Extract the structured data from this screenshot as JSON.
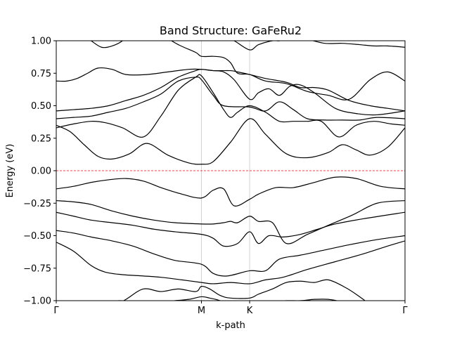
{
  "chart_data": {
    "type": "line",
    "title": "Band Structure: GaFeRu2",
    "xlabel": "k-path",
    "ylabel": "Energy (eV)",
    "xlim": [
      0,
      1
    ],
    "ylim": [
      -1.0,
      1.0
    ],
    "yticks": [
      -1.0,
      -0.75,
      -0.5,
      -0.25,
      0.0,
      0.25,
      0.5,
      0.75,
      1.0
    ],
    "ytick_labels": [
      "−1.00",
      "−0.75",
      "−0.50",
      "−0.25",
      "0.00",
      "0.25",
      "0.50",
      "0.75",
      "1.00"
    ],
    "kpoints": [
      {
        "label": "Γ",
        "x": 0.0
      },
      {
        "label": "M",
        "x": 0.4163
      },
      {
        "label": "K",
        "x": 0.5545
      },
      {
        "label": "Γ",
        "x": 1.0
      }
    ],
    "kpoint_vlines": true,
    "fermi_level": {
      "energy": 0.0,
      "color": "#ff0000",
      "style": "dashed"
    },
    "band_color": "#000000",
    "legend": "none",
    "grid": false,
    "series": [
      {
        "x": [
          0,
          0.05,
          0.1,
          0.14,
          0.19,
          0.25,
          0.3,
          0.36,
          0.4163,
          0.45,
          0.5,
          0.5545,
          0.6,
          0.65,
          0.72,
          0.8,
          0.88,
          0.95,
          1.0
        ],
        "y": [
          -0.55,
          -0.62,
          -0.73,
          -0.78,
          -0.8,
          -0.81,
          -0.82,
          -0.84,
          -0.86,
          -0.87,
          -0.86,
          -0.87,
          -0.84,
          -0.82,
          -0.76,
          -0.7,
          -0.64,
          -0.58,
          -0.54
        ]
      },
      {
        "x": [
          0,
          0.05,
          0.1,
          0.16,
          0.22,
          0.28,
          0.34,
          0.4163,
          0.45,
          0.49,
          0.5545,
          0.6,
          0.64,
          0.7,
          0.77,
          0.84,
          0.92,
          1.0
        ],
        "y": [
          -0.46,
          -0.48,
          -0.51,
          -0.54,
          -0.58,
          -0.64,
          -0.69,
          -0.72,
          -0.79,
          -0.81,
          -0.77,
          -0.77,
          -0.68,
          -0.65,
          -0.61,
          -0.57,
          -0.53,
          -0.5
        ]
      },
      {
        "x": [
          0,
          0.05,
          0.1,
          0.16,
          0.22,
          0.28,
          0.34,
          0.4163,
          0.45,
          0.48,
          0.52,
          0.5545,
          0.58,
          0.61,
          0.65,
          0.7,
          0.75,
          0.8,
          0.88,
          1.0
        ],
        "y": [
          -0.32,
          -0.35,
          -0.38,
          -0.4,
          -0.42,
          -0.45,
          -0.47,
          -0.49,
          -0.52,
          -0.58,
          -0.56,
          -0.47,
          -0.56,
          -0.5,
          -0.51,
          -0.49,
          -0.45,
          -0.41,
          -0.37,
          -0.32
        ]
      },
      {
        "x": [
          0,
          0.05,
          0.1,
          0.16,
          0.22,
          0.28,
          0.34,
          0.4163,
          0.45,
          0.48,
          0.5,
          0.52,
          0.5545,
          0.58,
          0.62,
          0.66,
          0.72,
          0.78,
          0.85,
          0.92,
          1.0
        ],
        "y": [
          -0.23,
          -0.24,
          -0.26,
          -0.31,
          -0.35,
          -0.38,
          -0.4,
          -0.41,
          -0.41,
          -0.4,
          -0.39,
          -0.4,
          -0.35,
          -0.39,
          -0.4,
          -0.56,
          -0.49,
          -0.42,
          -0.34,
          -0.25,
          -0.23
        ]
      },
      {
        "x": [
          0,
          0.05,
          0.1,
          0.15,
          0.2,
          0.25,
          0.3,
          0.36,
          0.4163,
          0.45,
          0.48,
          0.51,
          0.5545,
          0.58,
          0.63,
          0.68,
          0.74,
          0.8,
          0.86,
          0.93,
          1.0
        ],
        "y": [
          -0.14,
          -0.12,
          -0.09,
          -0.07,
          -0.06,
          -0.08,
          -0.13,
          -0.18,
          -0.21,
          -0.15,
          -0.14,
          -0.27,
          -0.22,
          -0.18,
          -0.13,
          -0.13,
          -0.09,
          -0.05,
          -0.06,
          -0.12,
          -0.14
        ]
      },
      {
        "x": [
          0,
          0.04,
          0.08,
          0.12,
          0.16,
          0.21,
          0.26,
          0.32,
          0.38,
          0.4163,
          0.45,
          0.5,
          0.5545,
          0.6,
          0.66,
          0.72,
          0.78,
          0.82,
          0.86,
          0.9,
          0.95,
          1.0
        ],
        "y": [
          0.35,
          0.3,
          0.2,
          0.11,
          0.09,
          0.13,
          0.21,
          0.12,
          0.06,
          0.05,
          0.07,
          0.22,
          0.4,
          0.28,
          0.13,
          0.1,
          0.14,
          0.2,
          0.16,
          0.12,
          0.18,
          0.33
        ]
      },
      {
        "x": [
          0,
          0.05,
          0.1,
          0.14,
          0.19,
          0.25,
          0.3,
          0.35,
          0.4,
          0.4163,
          0.45,
          0.48,
          0.5,
          0.52,
          0.5545,
          0.6,
          0.64,
          0.68,
          0.72,
          0.76,
          0.81,
          0.86,
          0.91,
          0.96,
          1.0
        ],
        "y": [
          0.33,
          0.36,
          0.38,
          0.37,
          0.33,
          0.26,
          0.42,
          0.62,
          0.72,
          0.73,
          0.6,
          0.47,
          0.41,
          0.45,
          0.5,
          0.45,
          0.38,
          0.38,
          0.38,
          0.38,
          0.26,
          0.35,
          0.38,
          0.36,
          0.35
        ]
      },
      {
        "x": [
          0,
          0.05,
          0.1,
          0.15,
          0.2,
          0.25,
          0.3,
          0.35,
          0.4,
          0.4163,
          0.45,
          0.48,
          0.5545,
          0.6,
          0.64,
          0.68,
          0.72,
          0.77,
          0.82,
          0.87,
          0.92,
          1.0
        ],
        "y": [
          0.4,
          0.41,
          0.42,
          0.45,
          0.48,
          0.53,
          0.59,
          0.69,
          0.72,
          0.7,
          0.58,
          0.5,
          0.49,
          0.46,
          0.53,
          0.47,
          0.4,
          0.39,
          0.39,
          0.39,
          0.41,
          0.4
        ]
      },
      {
        "x": [
          0,
          0.05,
          0.1,
          0.15,
          0.2,
          0.25,
          0.3,
          0.35,
          0.4,
          0.4163,
          0.45,
          0.48,
          0.51,
          0.5545,
          0.58,
          0.61,
          0.64,
          0.67,
          0.7,
          0.74,
          0.8,
          0.86,
          0.92,
          1.0
        ],
        "y": [
          0.46,
          0.47,
          0.48,
          0.5,
          0.54,
          0.58,
          0.64,
          0.72,
          0.77,
          0.78,
          0.77,
          0.76,
          0.7,
          0.55,
          0.6,
          0.63,
          0.58,
          0.65,
          0.66,
          0.6,
          0.48,
          0.44,
          0.43,
          0.46
        ]
      },
      {
        "x": [
          0,
          0.03,
          0.06,
          0.09,
          0.12,
          0.16,
          0.2,
          0.26,
          0.32,
          0.38,
          0.4163,
          0.45,
          0.5,
          0.52,
          0.5545,
          0.6,
          0.66,
          0.7,
          0.74,
          0.78,
          0.84,
          0.9,
          0.95,
          1.0
        ],
        "y": [
          0.69,
          0.69,
          0.71,
          0.75,
          0.79,
          0.78,
          0.74,
          0.74,
          0.76,
          0.78,
          0.78,
          0.77,
          0.77,
          0.76,
          0.74,
          0.71,
          0.68,
          0.64,
          0.64,
          0.62,
          0.54,
          0.5,
          0.48,
          0.46
        ]
      },
      {
        "x": [
          0.3,
          0.35,
          0.4,
          0.4163,
          0.45,
          0.48,
          0.5,
          0.52,
          0.5545,
          0.6,
          0.66,
          0.72,
          0.78,
          0.84,
          0.9,
          0.95,
          1.0
        ],
        "y": [
          1.05,
          0.97,
          0.91,
          0.88,
          0.88,
          0.87,
          0.83,
          0.75,
          0.74,
          0.69,
          0.67,
          0.61,
          0.58,
          0.55,
          0.7,
          0.76,
          0.69
        ]
      },
      {
        "x": [
          0.1,
          0.13,
          0.16,
          0.19,
          0.21,
          0.24,
          0.28,
          0.32,
          0.36,
          0.4,
          0.4163,
          0.45,
          0.48,
          0.51,
          0.5545,
          0.58,
          0.62,
          0.64,
          0.68,
          0.72,
          0.77,
          0.82,
          0.87,
          0.91,
          0.95,
          1.0
        ],
        "y": [
          1.0,
          0.95,
          0.96,
          1.0,
          1.06,
          1.06,
          1.06,
          1.06,
          1.06,
          1.05,
          1.05,
          1.04,
          1.03,
          1.0,
          0.93,
          0.97,
          1.0,
          1.0,
          1.02,
          1.01,
          0.98,
          0.98,
          0.97,
          0.96,
          0.96,
          0.95
        ]
      },
      {
        "x": [
          0.16,
          0.2,
          0.25,
          0.3,
          0.35,
          0.4,
          0.4163,
          0.44,
          0.47,
          0.5,
          0.5545,
          0.58,
          0.62,
          0.66,
          0.7,
          0.74,
          0.78,
          0.83,
          0.87,
          0.91
        ],
        "y": [
          -1.05,
          -0.99,
          -0.91,
          -0.93,
          -0.91,
          -0.93,
          -0.89,
          -0.91,
          -0.96,
          -0.98,
          -0.98,
          -0.95,
          -0.91,
          -0.86,
          -0.85,
          -0.86,
          -0.84,
          -0.9,
          -0.97,
          -1.05
        ]
      },
      {
        "x": [
          0.05,
          0.1,
          0.14,
          0.18,
          0.22,
          0.26,
          0.3,
          0.34,
          0.38,
          0.4163,
          0.44,
          0.47,
          0.5,
          0.52,
          0.5545,
          0.58,
          0.62,
          0.66,
          0.7,
          0.74,
          0.78,
          0.82,
          0.86
        ],
        "y": [
          -1.05,
          -1.05,
          -1.02,
          -1.0,
          -1.01,
          -1.02,
          -1.01,
          -1.0,
          -0.99,
          -0.97,
          -0.98,
          -1.0,
          -1.04,
          -1.06,
          -1.06,
          -1.04,
          -1.01,
          -1.0,
          -1.0,
          -0.99,
          -0.99,
          -1.01,
          -1.05
        ]
      }
    ]
  }
}
